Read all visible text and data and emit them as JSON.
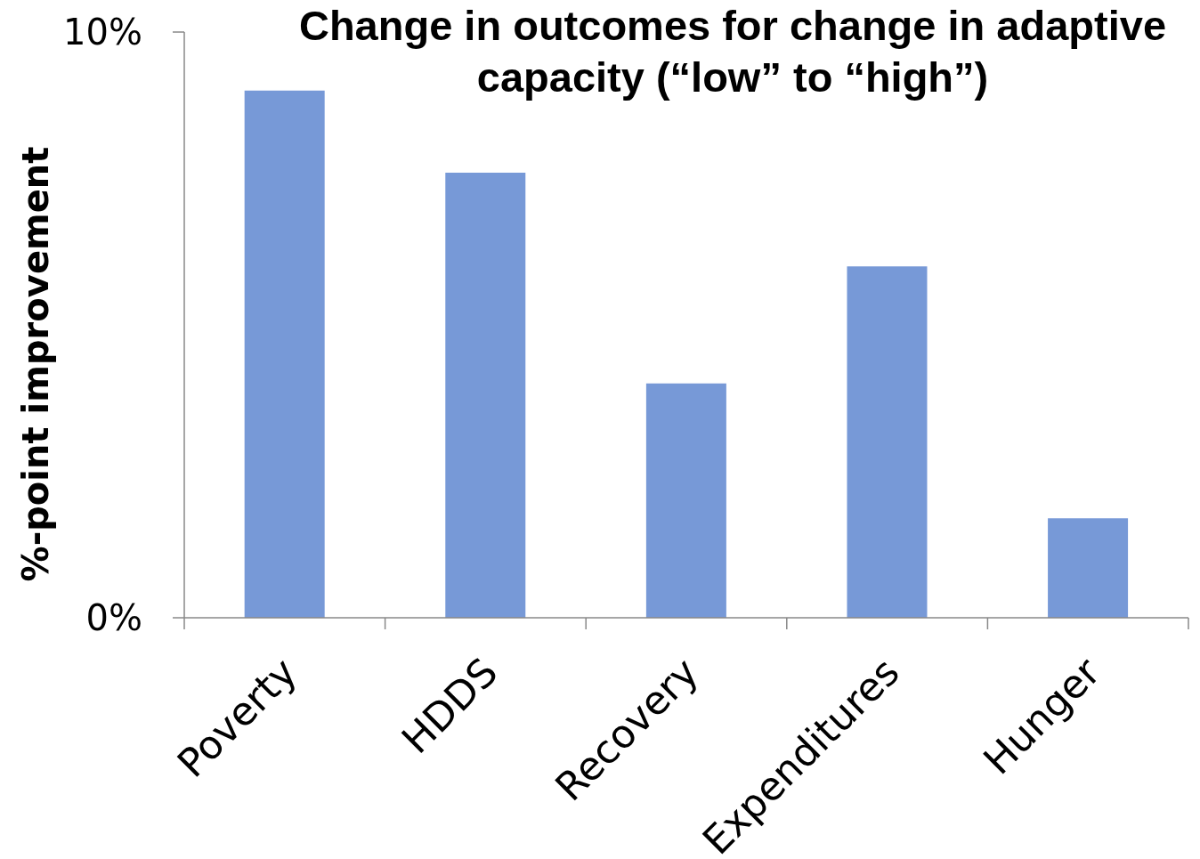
{
  "chart_data": {
    "type": "bar",
    "title": "Change in outcomes for change in adaptive capacity (“low” to “high”)",
    "ylabel": "%-point improvement",
    "categories": [
      "Poverty",
      "HDDS",
      "Recovery",
      "Expenditures",
      "Hunger"
    ],
    "values": [
      9.0,
      7.6,
      4.0,
      6.0,
      1.7
    ],
    "color": "#7799d7",
    "ylim": [
      0,
      10
    ],
    "yticks": [
      {
        "value": 0,
        "label": "0%"
      },
      {
        "value": 10,
        "label": "10%"
      }
    ]
  }
}
